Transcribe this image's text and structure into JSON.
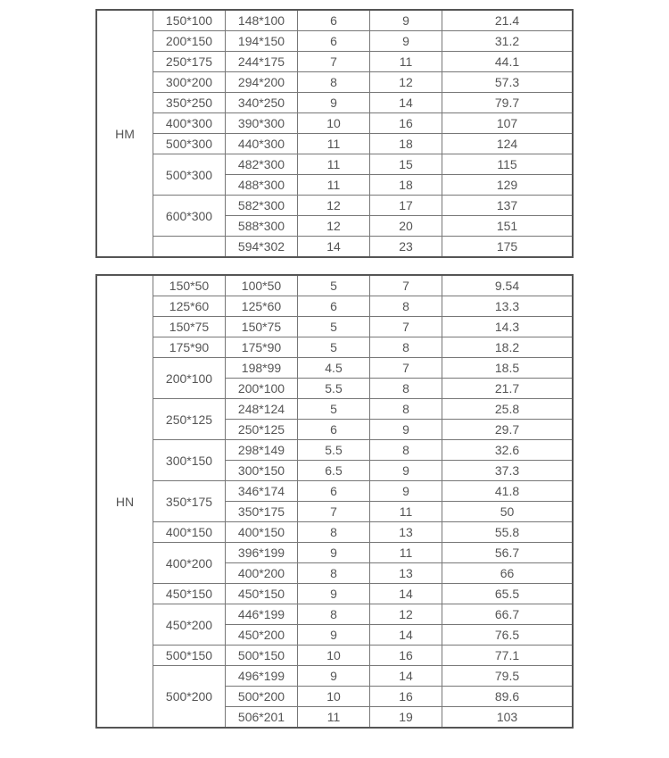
{
  "table1": {
    "label": "HM",
    "rows": [
      {
        "a": "150*100",
        "b": "148*100",
        "c": "6",
        "d": "9",
        "e": "21.4",
        "aspan": 1
      },
      {
        "a": "200*150",
        "b": "194*150",
        "c": "6",
        "d": "9",
        "e": "31.2",
        "aspan": 1
      },
      {
        "a": "250*175",
        "b": "244*175",
        "c": "7",
        "d": "11",
        "e": "44.1",
        "aspan": 1
      },
      {
        "a": "300*200",
        "b": "294*200",
        "c": "8",
        "d": "12",
        "e": "57.3",
        "aspan": 1
      },
      {
        "a": "350*250",
        "b": "340*250",
        "c": "9",
        "d": "14",
        "e": "79.7",
        "aspan": 1
      },
      {
        "a": "400*300",
        "b": "390*300",
        "c": "10",
        "d": "16",
        "e": "107",
        "aspan": 1
      },
      {
        "a": "500*300",
        "b": "440*300",
        "c": "11",
        "d": "18",
        "e": "124",
        "aspan": 1
      },
      {
        "a": "500*300",
        "b": "482*300",
        "c": "11",
        "d": "15",
        "e": "115",
        "aspan": 2
      },
      {
        "b": "488*300",
        "c": "11",
        "d": "18",
        "e": "129"
      },
      {
        "a": "600*300",
        "b": "582*300",
        "c": "12",
        "d": "17",
        "e": "137",
        "aspan": 2
      },
      {
        "b": "588*300",
        "c": "12",
        "d": "20",
        "e": "151"
      },
      {
        "b": "594*302",
        "c": "14",
        "d": "23",
        "e": "175",
        "ablank": true
      }
    ]
  },
  "table2": {
    "label": "HN",
    "rows": [
      {
        "a": "150*50",
        "b": "100*50",
        "c": "5",
        "d": "7",
        "e": "9.54",
        "aspan": 1
      },
      {
        "a": "125*60",
        "b": "125*60",
        "c": "6",
        "d": "8",
        "e": "13.3",
        "aspan": 1
      },
      {
        "a": "150*75",
        "b": "150*75",
        "c": "5",
        "d": "7",
        "e": "14.3",
        "aspan": 1
      },
      {
        "a": "175*90",
        "b": "175*90",
        "c": "5",
        "d": "8",
        "e": "18.2",
        "aspan": 1
      },
      {
        "a": "200*100",
        "b": "198*99",
        "c": "4.5",
        "d": "7",
        "e": "18.5",
        "aspan": 2
      },
      {
        "b": "200*100",
        "c": "5.5",
        "d": "8",
        "e": "21.7"
      },
      {
        "a": "250*125",
        "b": "248*124",
        "c": "5",
        "d": "8",
        "e": "25.8",
        "aspan": 2
      },
      {
        "b": "250*125",
        "c": "6",
        "d": "9",
        "e": "29.7"
      },
      {
        "a": "300*150",
        "b": "298*149",
        "c": "5.5",
        "d": "8",
        "e": "32.6",
        "aspan": 2
      },
      {
        "b": "300*150",
        "c": "6.5",
        "d": "9",
        "e": "37.3"
      },
      {
        "a": "350*175",
        "b": "346*174",
        "c": "6",
        "d": "9",
        "e": "41.8",
        "aspan": 2
      },
      {
        "b": "350*175",
        "c": "7",
        "d": "11",
        "e": "50"
      },
      {
        "a": "400*150",
        "b": "400*150",
        "c": "8",
        "d": "13",
        "e": "55.8",
        "aspan": 1
      },
      {
        "a": "400*200",
        "b": "396*199",
        "c": "9",
        "d": "11",
        "e": "56.7",
        "aspan": 2
      },
      {
        "b": "400*200",
        "c": "8",
        "d": "13",
        "e": "66"
      },
      {
        "a": "450*150",
        "b": "450*150",
        "c": "9",
        "d": "14",
        "e": "65.5",
        "aspan": 1
      },
      {
        "a": "450*200",
        "b": "446*199",
        "c": "8",
        "d": "12",
        "e": "66.7",
        "aspan": 2
      },
      {
        "b": "450*200",
        "c": "9",
        "d": "14",
        "e": "76.5"
      },
      {
        "a": "500*150",
        "b": "500*150",
        "c": "10",
        "d": "16",
        "e": "77.1",
        "aspan": 1
      },
      {
        "a": "500*200",
        "b": "496*199",
        "c": "9",
        "d": "14",
        "e": "79.5",
        "aspan": 3
      },
      {
        "b": "500*200",
        "c": "10",
        "d": "16",
        "e": "89.6"
      },
      {
        "b": "506*201",
        "c": "11",
        "d": "19",
        "e": "103"
      }
    ]
  }
}
